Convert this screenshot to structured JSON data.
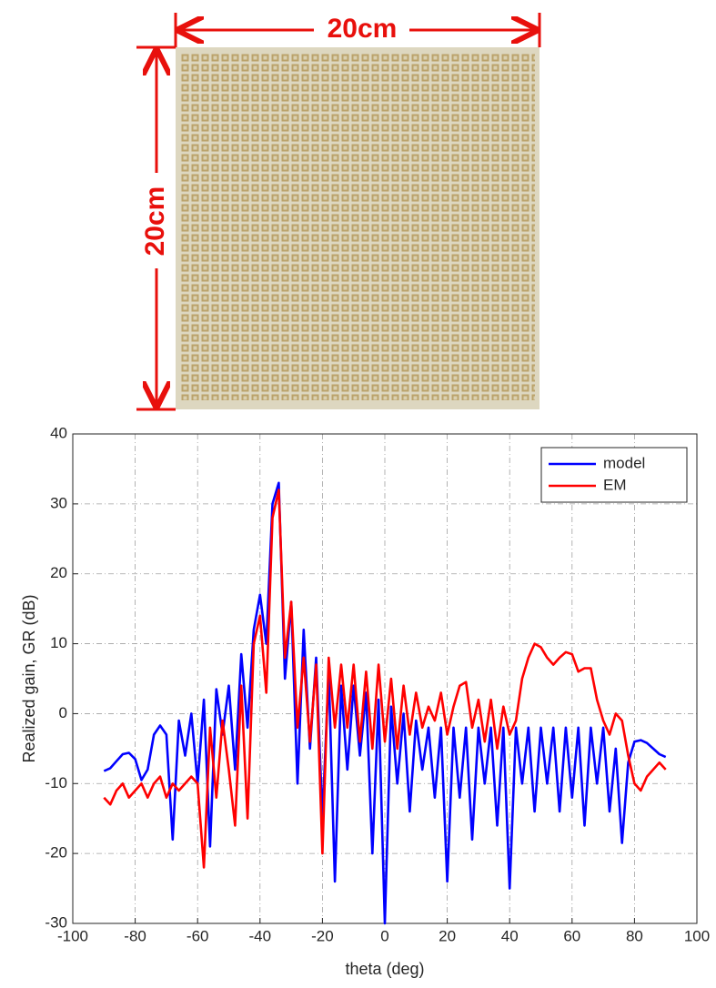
{
  "photo": {
    "width_label": "20cm",
    "height_label": "20cm"
  },
  "chart_data": {
    "type": "line",
    "xlabel": "theta (deg)",
    "ylabel": "Realized gain, GR (dB)",
    "xlim": [
      -100,
      100
    ],
    "xticks": [
      -100,
      -80,
      -60,
      -40,
      -20,
      0,
      20,
      40,
      60,
      80,
      100
    ],
    "ylim": [
      -30,
      40
    ],
    "yticks": [
      -30,
      -20,
      -10,
      0,
      10,
      20,
      30,
      40
    ],
    "grid": true,
    "legend": "upper right",
    "x": [
      -90,
      -88,
      -86,
      -84,
      -82,
      -80,
      -78,
      -76,
      -74,
      -72,
      -70,
      -68,
      -66,
      -64,
      -62,
      -60,
      -58,
      -56,
      -54,
      -52,
      -50,
      -48,
      -46,
      -44,
      -42,
      -40,
      -38,
      -36,
      -34,
      -32,
      -30,
      -28,
      -26,
      -24,
      -22,
      -20,
      -18,
      -16,
      -14,
      -12,
      -10,
      -8,
      -6,
      -4,
      -2,
      0,
      2,
      4,
      6,
      8,
      10,
      12,
      14,
      16,
      18,
      20,
      22,
      24,
      26,
      28,
      30,
      32,
      34,
      36,
      38,
      40,
      42,
      44,
      46,
      48,
      50,
      52,
      54,
      56,
      58,
      60,
      62,
      64,
      66,
      68,
      70,
      72,
      74,
      76,
      78,
      80,
      82,
      84,
      86,
      88,
      90
    ],
    "series": [
      {
        "name": "model",
        "color": "#0000ff",
        "values": [
          -8.2,
          -7.8,
          -6.8,
          -5.8,
          -5.6,
          -6.5,
          -9.5,
          -8,
          -3,
          -1.7,
          -3,
          -18,
          -1,
          -6,
          0,
          -10,
          2,
          -19,
          3.5,
          -3,
          4,
          -8,
          8.5,
          -2,
          12,
          17,
          10,
          30,
          33,
          5,
          16,
          -10,
          12,
          -5,
          8,
          -15,
          6,
          -24,
          4,
          -8,
          4,
          -6,
          3,
          -20,
          2,
          -30,
          1,
          -10,
          0,
          -14,
          -1,
          -8,
          -2,
          -12,
          -2,
          -24,
          -2,
          -12,
          -2,
          -18,
          -2,
          -10,
          -2,
          -16,
          -2,
          -25,
          -2,
          -10,
          -2,
          -14,
          -2,
          -10,
          -2,
          -14,
          -2,
          -12,
          -2,
          -16,
          -2,
          -10,
          -2,
          -14,
          -5,
          -18.5,
          -7,
          -4,
          -3.8,
          -4.2,
          -5,
          -5.8,
          -6.2
        ]
      },
      {
        "name": "EM",
        "color": "#ff0000",
        "values": [
          -12,
          -13,
          -11,
          -10,
          -12,
          -11,
          -10,
          -12,
          -10,
          -9,
          -12,
          -10,
          -11,
          -10,
          -9,
          -10,
          -22,
          -2,
          -12,
          -1,
          -8,
          -16,
          4,
          -15,
          10,
          14,
          3,
          28,
          32,
          8,
          16,
          -2,
          8,
          -4,
          7,
          -20,
          8,
          -2,
          7,
          -2,
          7,
          -4,
          6,
          -5,
          7,
          -4,
          5,
          -5,
          4,
          -3,
          3,
          -2,
          1,
          -1,
          3,
          -3,
          1,
          4,
          4.5,
          -2,
          2,
          -4,
          2,
          -5,
          1,
          -3,
          -1,
          5,
          8,
          10,
          9.5,
          8,
          7,
          8,
          8.8,
          8.5,
          6,
          6.5,
          6.5,
          2,
          -1,
          -3,
          0,
          -1,
          -6,
          -10,
          -11,
          -9,
          -8,
          -7,
          -8
        ]
      }
    ]
  }
}
